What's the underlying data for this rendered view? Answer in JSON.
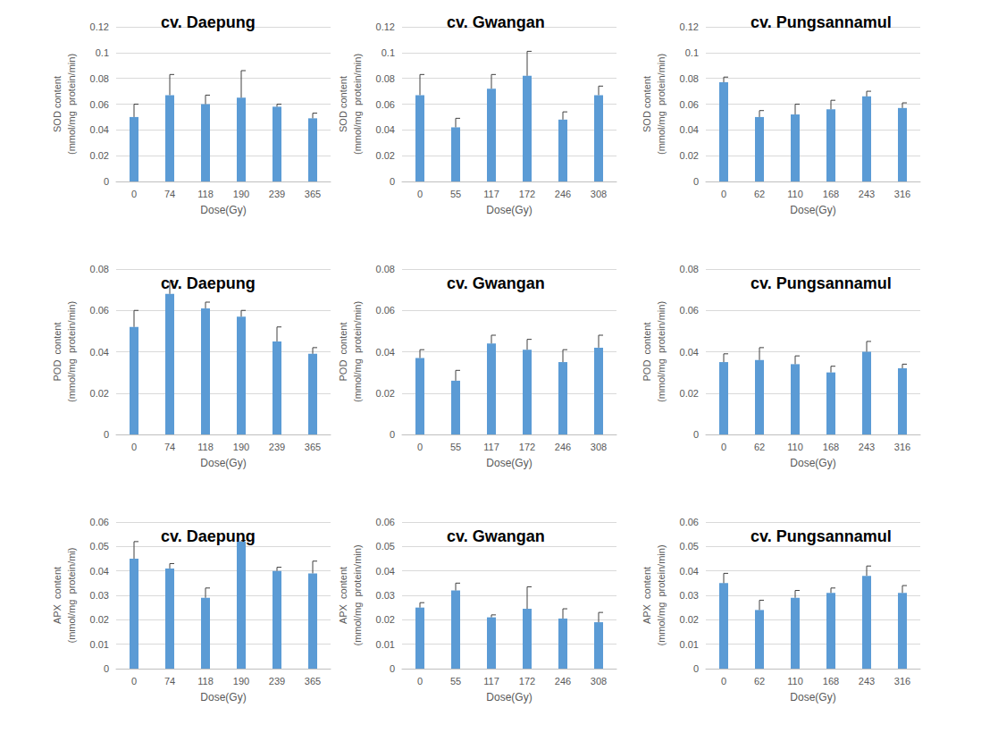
{
  "chart_data": [
    {
      "type": "bar",
      "title": "cv. Daepung",
      "xlabel": "Dose(Gy)",
      "ylabel": "SOD content\n(mmol/mg  protein/min)",
      "categories": [
        "0",
        "74",
        "118",
        "190",
        "239",
        "365"
      ],
      "values": [
        0.05,
        0.067,
        0.06,
        0.065,
        0.058,
        0.049
      ],
      "errors": [
        0.01,
        0.016,
        0.007,
        0.021,
        0.002,
        0.004
      ],
      "color": "#5b9bd5",
      "ylim": [
        0,
        0.12
      ],
      "yticks": [
        0,
        0.02,
        0.04,
        0.06,
        0.08,
        0.1,
        0.12
      ],
      "grid": true
    },
    {
      "type": "bar",
      "title": "cv. Gwangan",
      "xlabel": "Dose(Gy)",
      "ylabel": "SOD content\n(mmol/mg  protein/min)",
      "categories": [
        "0",
        "55",
        "117",
        "172",
        "246",
        "308"
      ],
      "values": [
        0.067,
        0.042,
        0.072,
        0.082,
        0.048,
        0.067
      ],
      "errors": [
        0.016,
        0.007,
        0.011,
        0.019,
        0.006,
        0.007
      ],
      "color": "#5b9bd5",
      "ylim": [
        0,
        0.12
      ],
      "yticks": [
        0,
        0.02,
        0.04,
        0.06,
        0.08,
        0.1,
        0.12
      ],
      "grid": true
    },
    {
      "type": "bar",
      "title": "cv. Pungsannamul",
      "xlabel": "Dose(Gy)",
      "ylabel": "SOD content\n(mmol/mg  protein/min)",
      "categories": [
        "0",
        "62",
        "110",
        "168",
        "243",
        "316"
      ],
      "values": [
        0.077,
        0.05,
        0.052,
        0.056,
        0.066,
        0.057
      ],
      "errors": [
        0.004,
        0.005,
        0.008,
        0.007,
        0.004,
        0.004
      ],
      "color": "#5b9bd5",
      "ylim": [
        0,
        0.12
      ],
      "yticks": [
        0,
        0.02,
        0.04,
        0.06,
        0.08,
        0.1,
        0.12
      ],
      "grid": true
    },
    {
      "type": "bar",
      "title": "cv. Daepung",
      "xlabel": "Dose(Gy)",
      "ylabel": "POD  content\n(mmol/mg  protein/min)",
      "categories": [
        "0",
        "74",
        "118",
        "190",
        "239",
        "365"
      ],
      "values": [
        0.052,
        0.068,
        0.061,
        0.057,
        0.045,
        0.039
      ],
      "errors": [
        0.008,
        0.006,
        0.003,
        0.003,
        0.007,
        0.003
      ],
      "color": "#5b9bd5",
      "ylim": [
        0,
        0.08
      ],
      "yticks": [
        0,
        0.02,
        0.04,
        0.06,
        0.08
      ],
      "grid": true
    },
    {
      "type": "bar",
      "title": "cv. Gwangan",
      "xlabel": "Dose(Gy)",
      "ylabel": "POD  content\n(mmol/mg  protein/min)",
      "categories": [
        "0",
        "55",
        "117",
        "172",
        "246",
        "308"
      ],
      "values": [
        0.037,
        0.026,
        0.044,
        0.041,
        0.035,
        0.042
      ],
      "errors": [
        0.004,
        0.005,
        0.004,
        0.005,
        0.006,
        0.006
      ],
      "color": "#5b9bd5",
      "ylim": [
        0,
        0.08
      ],
      "yticks": [
        0,
        0.02,
        0.04,
        0.06,
        0.08
      ],
      "grid": true
    },
    {
      "type": "bar",
      "title": "cv. Pungsannamul",
      "xlabel": "Dose(Gy)",
      "ylabel": "POD  content\n(mmol/mg  protein/min)",
      "categories": [
        "0",
        "62",
        "110",
        "168",
        "243",
        "316"
      ],
      "values": [
        0.035,
        0.036,
        0.034,
        0.03,
        0.04,
        0.032
      ],
      "errors": [
        0.004,
        0.006,
        0.004,
        0.003,
        0.005,
        0.002
      ],
      "color": "#5b9bd5",
      "ylim": [
        0,
        0.08
      ],
      "yticks": [
        0,
        0.02,
        0.04,
        0.06,
        0.08
      ],
      "grid": true
    },
    {
      "type": "bar",
      "title": "cv. Daepung",
      "xlabel": "Dose(Gy)",
      "ylabel": "APX  content\n(mmol/mg  protein/mi)",
      "categories": [
        "0",
        "74",
        "118",
        "190",
        "239",
        "365"
      ],
      "values": [
        0.045,
        0.041,
        0.029,
        0.052,
        0.04,
        0.039
      ],
      "errors": [
        0.007,
        0.002,
        0.004,
        0.0005,
        0.0015,
        0.005
      ],
      "color": "#5b9bd5",
      "ylim": [
        0,
        0.06
      ],
      "yticks": [
        0,
        0.01,
        0.02,
        0.03,
        0.04,
        0.05,
        0.06
      ],
      "grid": true
    },
    {
      "type": "bar",
      "title": "cv. Gwangan",
      "xlabel": "Dose(Gy)",
      "ylabel": "APX  content\n(mmol/mg  protein/min)",
      "categories": [
        "0",
        "55",
        "117",
        "172",
        "246",
        "308"
      ],
      "values": [
        0.025,
        0.032,
        0.021,
        0.0245,
        0.0205,
        0.019
      ],
      "errors": [
        0.002,
        0.003,
        0.001,
        0.009,
        0.004,
        0.004
      ],
      "color": "#5b9bd5",
      "ylim": [
        0,
        0.06
      ],
      "yticks": [
        0,
        0.01,
        0.02,
        0.03,
        0.04,
        0.05,
        0.06
      ],
      "grid": true
    },
    {
      "type": "bar",
      "title": "cv. Pungsannamul",
      "xlabel": "Dose(Gy)",
      "ylabel": "APX  content\n(mmol/mg  protein/min)",
      "categories": [
        "0",
        "62",
        "110",
        "168",
        "243",
        "316"
      ],
      "values": [
        0.035,
        0.024,
        0.029,
        0.031,
        0.038,
        0.031
      ],
      "errors": [
        0.004,
        0.004,
        0.003,
        0.002,
        0.004,
        0.003
      ],
      "color": "#5b9bd5",
      "ylim": [
        0,
        0.06
      ],
      "yticks": [
        0,
        0.01,
        0.02,
        0.03,
        0.04,
        0.05,
        0.06
      ],
      "grid": true
    }
  ]
}
